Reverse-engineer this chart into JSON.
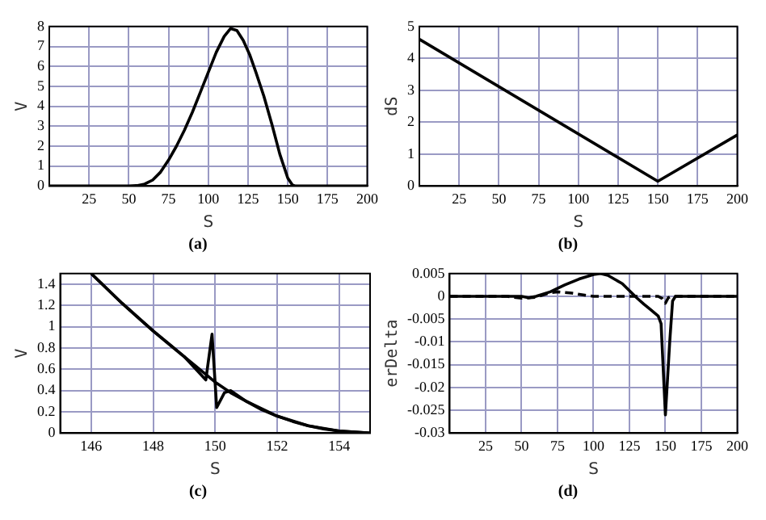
{
  "chart_data": [
    {
      "type": "line",
      "xlabel": "S",
      "ylabel": "V",
      "annotations": [
        "(a)"
      ],
      "xlim": [
        0,
        200
      ],
      "xticks": [
        25,
        50,
        75,
        100,
        125,
        150,
        175,
        200
      ],
      "ylim": [
        0,
        8
      ],
      "yticks": [
        0,
        1,
        2,
        3,
        4,
        5,
        6,
        7,
        8
      ],
      "grid": true,
      "series": [
        {
          "color": "#000000",
          "x": [
            0,
            50,
            55,
            60,
            65,
            70,
            75,
            80,
            85,
            90,
            95,
            100,
            105,
            110,
            114,
            118,
            122,
            126,
            130,
            135,
            140,
            145,
            150,
            153,
            155,
            200
          ],
          "values": [
            0,
            0,
            0.02,
            0.1,
            0.3,
            0.7,
            1.3,
            2.0,
            2.8,
            3.7,
            4.7,
            5.7,
            6.7,
            7.5,
            7.9,
            7.8,
            7.3,
            6.6,
            5.7,
            4.5,
            3.1,
            1.6,
            0.4,
            0.05,
            0,
            0
          ]
        }
      ]
    },
    {
      "type": "line",
      "xlabel": "S",
      "ylabel": "dS",
      "annotations": [
        "(b)"
      ],
      "xlim": [
        0,
        200
      ],
      "xticks": [
        25,
        50,
        75,
        100,
        125,
        150,
        175,
        200
      ],
      "ylim": [
        0,
        5
      ],
      "yticks": [
        0,
        1,
        2,
        3,
        4,
        5
      ],
      "grid": true,
      "series": [
        {
          "color": "#000000",
          "x": [
            0,
            150,
            200
          ],
          "values": [
            4.6,
            0.15,
            1.6
          ]
        }
      ]
    },
    {
      "type": "line",
      "xlabel": "S",
      "ylabel": "V",
      "annotations": [
        "(c)"
      ],
      "xlim": [
        145,
        155
      ],
      "xticks": [
        146,
        148,
        150,
        152,
        154
      ],
      "ylim": [
        0,
        1.5
      ],
      "yticks": [
        0,
        0.2,
        0.4,
        0.6,
        0.8,
        1,
        1.2,
        1.4
      ],
      "grid": true,
      "series": [
        {
          "color": "#000000",
          "x": [
            146,
            146.5,
            147,
            147.5,
            148,
            148.5,
            149,
            149.5,
            150,
            150.5,
            151,
            151.5,
            152,
            152.5,
            153,
            153.5,
            154,
            154.5,
            155
          ],
          "values": [
            1.5,
            1.36,
            1.22,
            1.09,
            0.96,
            0.84,
            0.72,
            0.6,
            0.48,
            0.38,
            0.3,
            0.22,
            0.16,
            0.11,
            0.07,
            0.04,
            0.02,
            0.01,
            0
          ]
        },
        {
          "color": "#000000",
          "x": [
            146,
            147,
            148,
            149,
            149.7,
            149.9,
            150.05,
            150.3,
            150.5,
            151,
            152,
            153,
            154,
            155
          ],
          "values": [
            1.5,
            1.22,
            0.96,
            0.72,
            0.5,
            0.93,
            0.24,
            0.38,
            0.4,
            0.3,
            0.16,
            0.07,
            0.02,
            0
          ]
        }
      ]
    },
    {
      "type": "line",
      "xlabel": "S",
      "ylabel": "erDelta",
      "annotations": [
        "(d)"
      ],
      "xlim": [
        0,
        200
      ],
      "xticks": [
        25,
        50,
        75,
        100,
        125,
        150,
        175,
        200
      ],
      "ylim": [
        -0.03,
        0.005
      ],
      "yticks": [
        -0.03,
        -0.025,
        -0.02,
        -0.015,
        -0.01,
        -0.005,
        0,
        0.005
      ],
      "grid": true,
      "series": [
        {
          "color": "#000000",
          "line_style": "solid",
          "x": [
            0,
            50,
            55,
            60,
            70,
            80,
            90,
            100,
            105,
            110,
            120,
            128,
            130,
            135,
            140,
            145,
            147,
            150,
            153,
            155,
            157,
            200
          ],
          "values": [
            0,
            0,
            -0.0003,
            0,
            0.001,
            0.0025,
            0.0038,
            0.0048,
            0.005,
            0.0046,
            0.0028,
            0.0003,
            -0.0003,
            -0.0017,
            -0.003,
            -0.0043,
            -0.006,
            -0.026,
            -0.01,
            -0.001,
            0,
            0
          ]
        },
        {
          "color": "#000000",
          "line_style": "dashed",
          "x": [
            0,
            40,
            50,
            60,
            70,
            75,
            85,
            95,
            100,
            145,
            148,
            150,
            152,
            154,
            200
          ],
          "values": [
            0,
            0,
            -0.0004,
            -0.0002,
            0.0008,
            0.001,
            0.0007,
            0.0002,
            0,
            0,
            -0.0005,
            -0.0015,
            -0.0003,
            0,
            0
          ]
        }
      ]
    }
  ]
}
